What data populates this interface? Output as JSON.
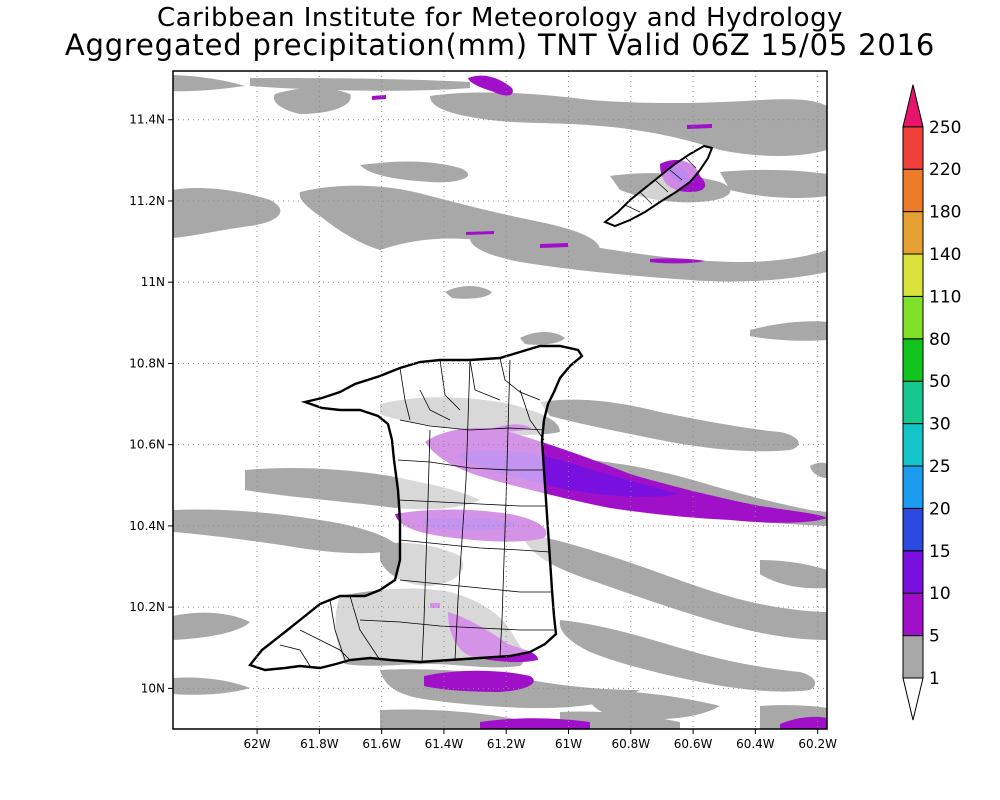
{
  "header": {
    "institute": "Caribbean Institute for Meteorology and Hydrology",
    "product": "Aggregated precipitation(mm) TNT Valid 06Z 15/05 2016"
  },
  "map": {
    "region": "Trinidad and Tobago",
    "lon_range": [
      -62.27,
      -60.17
    ],
    "lat_range": [
      9.9,
      11.52
    ],
    "x_ticks": [
      "62W",
      "61.8W",
      "61.6W",
      "61.4W",
      "61.2W",
      "61W",
      "60.8W",
      "60.6W",
      "60.4W",
      "60.2W"
    ],
    "y_ticks": [
      "11.4N",
      "11.2N",
      "11N",
      "10.8N",
      "10.6N",
      "10.4N",
      "10.2N",
      "10N"
    ],
    "grid": "dotted"
  },
  "colorbar": {
    "levels": [
      "1",
      "5",
      "10",
      "15",
      "20",
      "25",
      "30",
      "50",
      "80",
      "110",
      "140",
      "180",
      "220",
      "250"
    ],
    "colors": [
      "#a8a8a8",
      "#a010c8",
      "#7a10e0",
      "#2a4ae0",
      "#1b9cf0",
      "#13c4c8",
      "#16c890",
      "#12c41e",
      "#7fe228",
      "#d8e23a",
      "#e4a030",
      "#ec7a26",
      "#f0403a",
      "#e8146c"
    ]
  }
}
